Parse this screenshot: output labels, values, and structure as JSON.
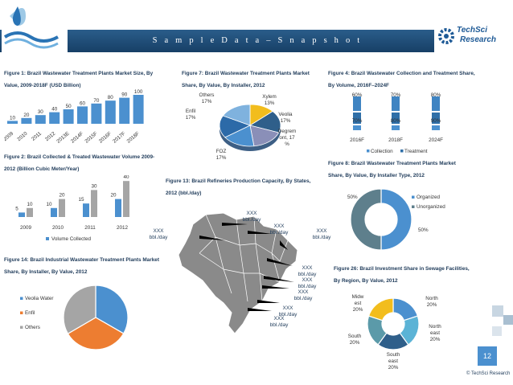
{
  "header": {
    "title": "S a m p l e   D a t a  –  S n a p s h o t",
    "brand_line1": "TechSci",
    "brand_line2": "Research"
  },
  "footer": {
    "page_number": "12",
    "copyright": "© TechSci Research"
  },
  "colors": {
    "navy": "#1f3b5a",
    "header_bar": "#1e4e7a",
    "blue": "#4b90cf",
    "gray": "#a5a5a5",
    "orange": "#ed7d31",
    "teal": "#5b9aa9",
    "yellow": "#f2bd1d"
  },
  "captions": {
    "fig1": "Figure 1: Brazil Wastewater Treatment Plants Market Size, By Value, 2009-2018F (USD Billion)",
    "fig2": "Figure 2: Brazil Collected & Treated Wastewater Volume 2009-2012 (Billion Cubic Meter/Year)",
    "fig14": "Figure 14: Brazil Industrial Wastewater Treatment Plants Market Share, By Installer, By Value, 2012",
    "fig7": "Figure 7: Brazil Wastewater Treatment Plants Market Share, By Value, By Installer, 2012",
    "fig13": "Figure 13: Brazil Refineries Production Capacity, By States, 2012  (bbl./day)",
    "fig4": "Figure 4: Brazil Wastewater Collection and Treatment Share, By Volume, 2016F–2024F",
    "fig8": "Figure 8: Brazil Wastewater Treatment Plants Market Share, By Value, By Installer Type, 2012",
    "fig26": "Figure 26: Brazil Investment Share in Sewage Facilities, By Region, By Value, 2012"
  },
  "map_labels": [
    "XXX bbl./day",
    "XXX bbl./day",
    "XXX bbl./day",
    "XXX bbl./day",
    "XXX bbl./day",
    "XXX bbl./day",
    "XXX bbl./day",
    "XXX bbl./day",
    "XXX bbl./day"
  ],
  "chart_data": [
    {
      "id": "fig1",
      "type": "bar",
      "categories": [
        "2009",
        "2010",
        "2011",
        "2012",
        "2013E",
        "2014F",
        "2015F",
        "2016F",
        "2017F",
        "2018F"
      ],
      "values": [
        10,
        20,
        30,
        40,
        50,
        60,
        70,
        80,
        90,
        100
      ],
      "color": "#4b90cf"
    },
    {
      "id": "fig2",
      "type": "bar",
      "categories": [
        "2009",
        "2010",
        "2011",
        "2012"
      ],
      "series": [
        {
          "name": "Volume Collected",
          "values": [
            5,
            10,
            15,
            20
          ],
          "color": "#4b90cf"
        },
        {
          "values": [
            10,
            20,
            30,
            40
          ],
          "color": "#a5a5a5"
        }
      ]
    },
    {
      "id": "fig14",
      "type": "pie",
      "slices": [
        {
          "label": "Veolia Water",
          "value": 33.3,
          "color": "#4b90cf"
        },
        {
          "label": "Enfil",
          "value": 33.3,
          "color": "#ed7d31"
        },
        {
          "label": "Others",
          "value": 33.4,
          "color": "#a5a5a5"
        }
      ]
    },
    {
      "id": "fig7",
      "type": "pie",
      "slices": [
        {
          "label": "Xylem",
          "value": 13,
          "display": "13%",
          "color": "#f2bd1d"
        },
        {
          "label": "Veolia",
          "value": 17,
          "display": "17%",
          "color": "#2f5f8a"
        },
        {
          "label": "Degremont",
          "value": 17,
          "display": "17 %",
          "color": "#8a8fb8"
        },
        {
          "label": "FOZ",
          "value": 17,
          "display": "17%",
          "color": "#4b90cf"
        },
        {
          "label": "Enfil",
          "value": 17,
          "display": "17%",
          "color": "#2c6aa8"
        },
        {
          "label": "Others",
          "value": 17,
          "display": "17%",
          "color": "#7fb2de"
        }
      ]
    },
    {
      "id": "fig4",
      "type": "bar",
      "stacked": true,
      "categories": [
        "2016F",
        "2018F",
        "2024F"
      ],
      "series": [
        {
          "name": "Collection",
          "values": [
            70,
            80,
            90
          ]
        },
        {
          "name": "Treatment",
          "values": [
            60,
            70,
            80
          ]
        }
      ]
    },
    {
      "id": "fig8",
      "type": "pie",
      "donut": true,
      "slices": [
        {
          "label": "Organized",
          "value": 50,
          "color": "#4b90cf"
        },
        {
          "label": "Unorganized",
          "value": 50,
          "color": "#5e7f8c"
        }
      ]
    },
    {
      "id": "fig26",
      "type": "pie",
      "donut": true,
      "slices": [
        {
          "label": "North",
          "value": 20,
          "color": "#4b90cf"
        },
        {
          "label": "North east",
          "value": 20,
          "color": "#5bb3d6"
        },
        {
          "label": "South east",
          "value": 20,
          "color": "#2f5f8a"
        },
        {
          "label": "South",
          "value": 20,
          "color": "#5b9aa9"
        },
        {
          "label": "Midwest",
          "value": 20,
          "color": "#f2bd1d"
        }
      ]
    }
  ]
}
